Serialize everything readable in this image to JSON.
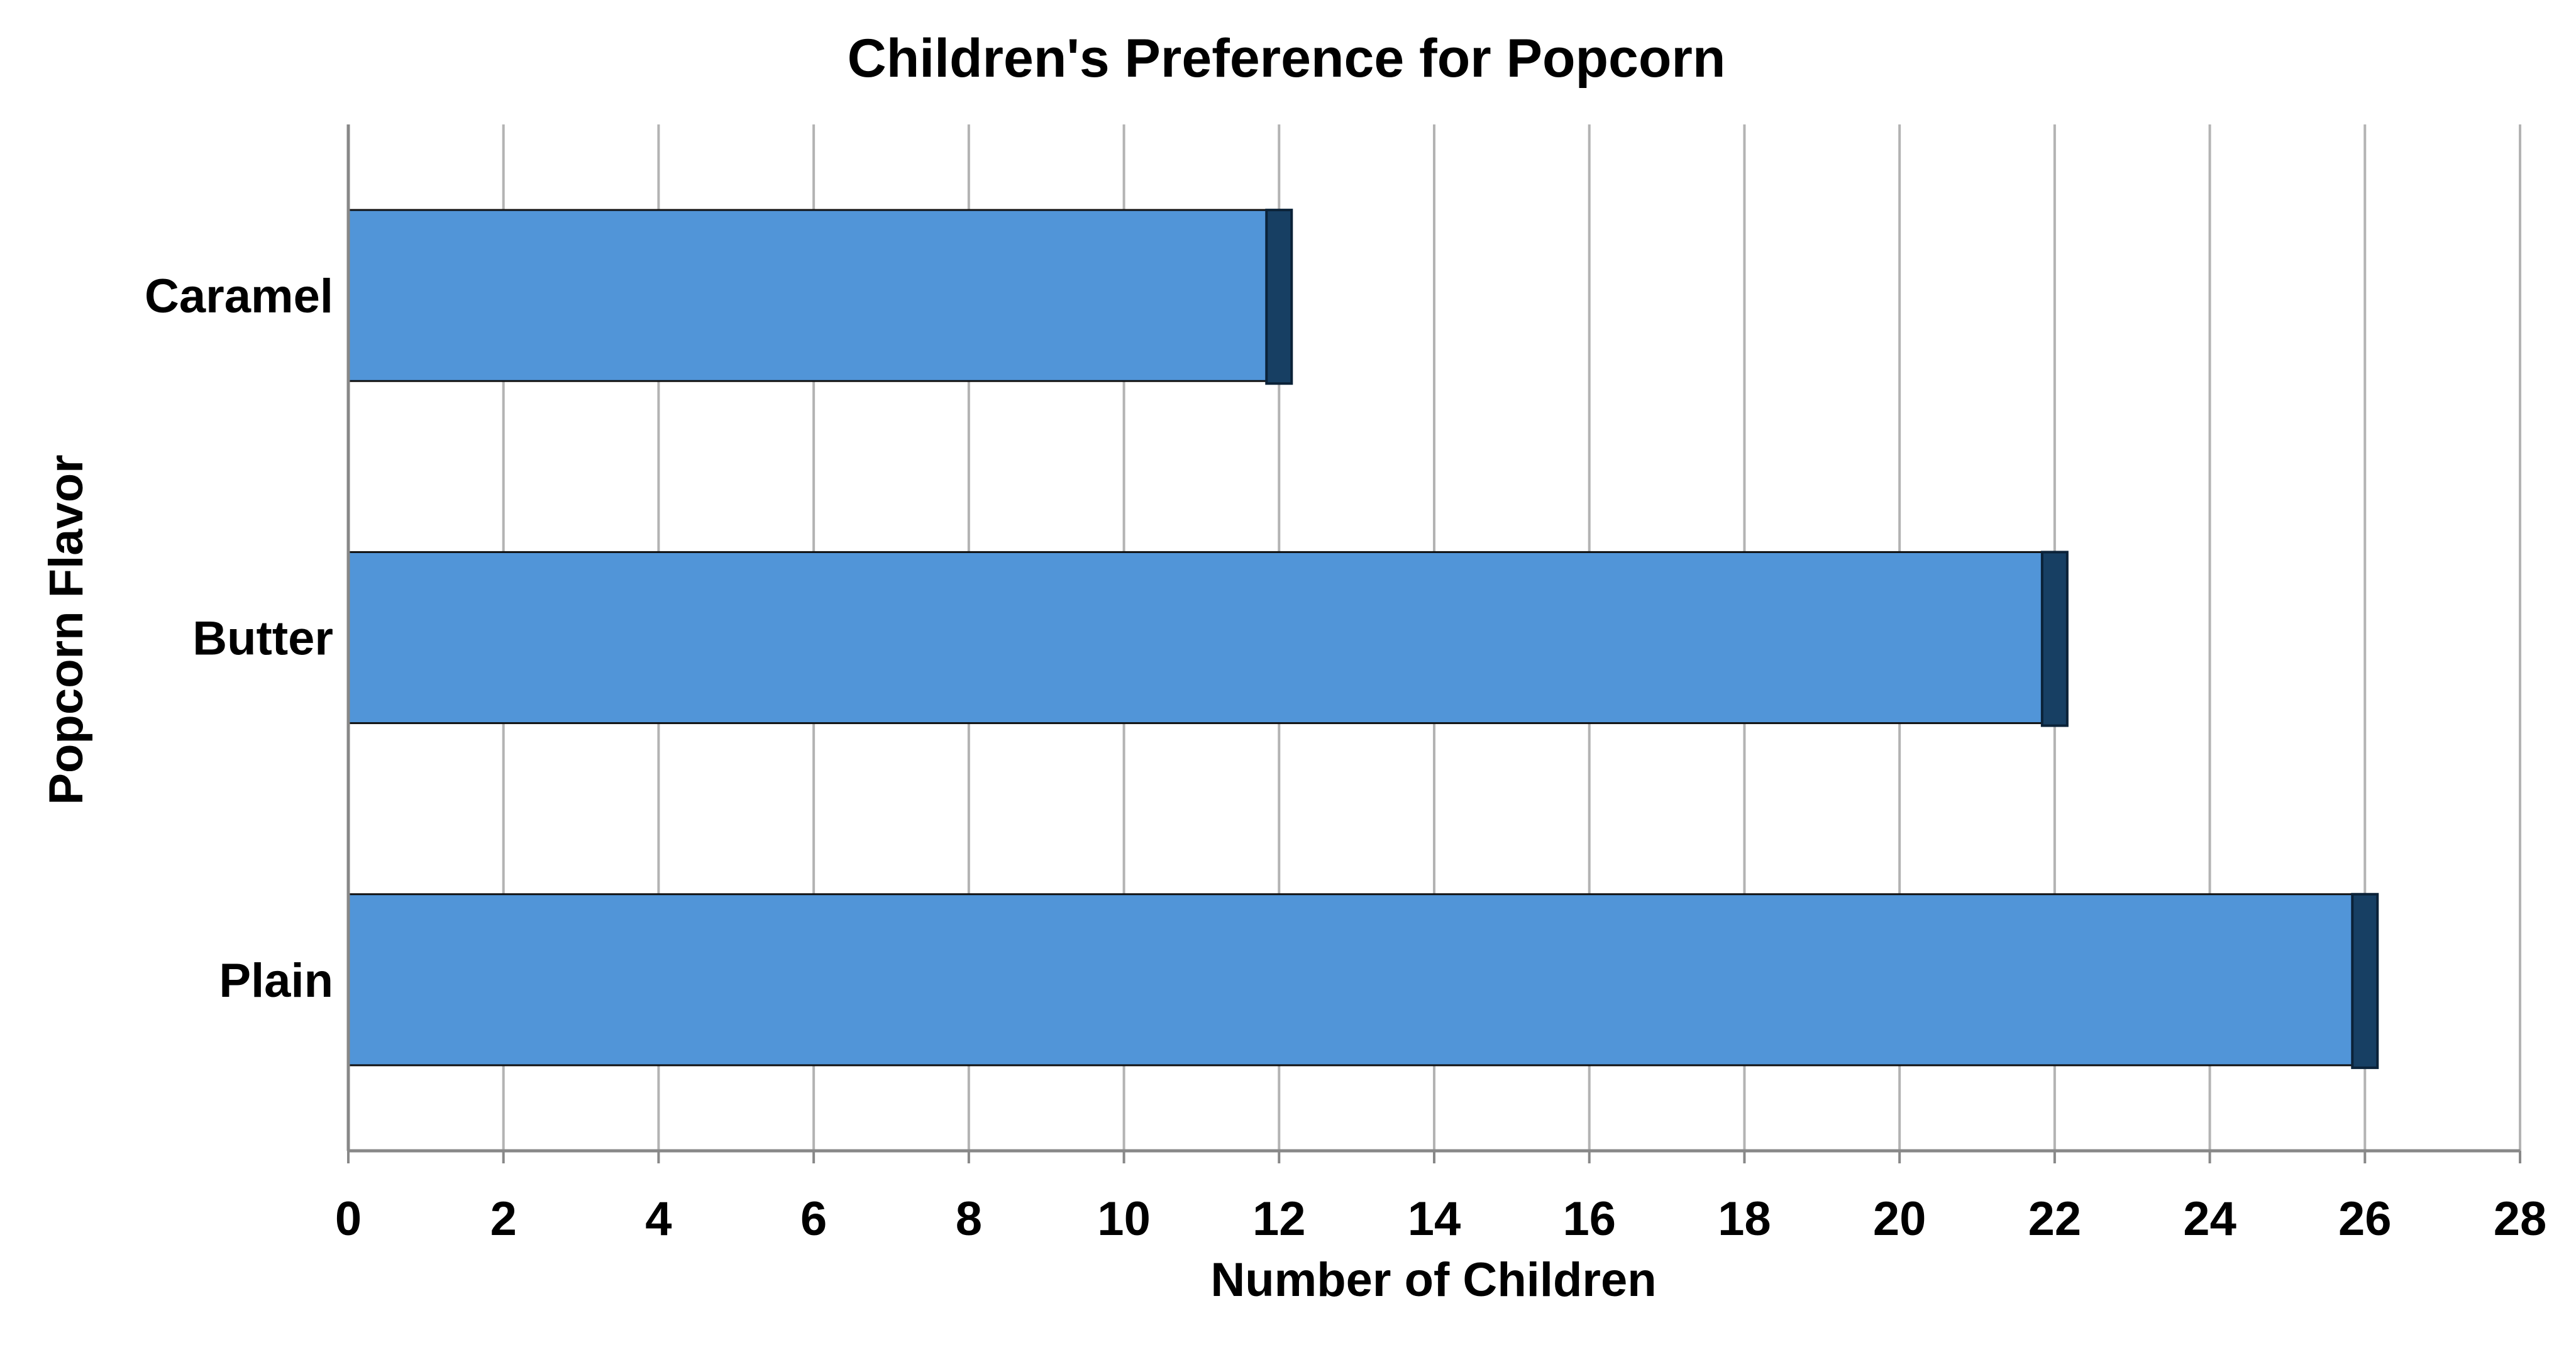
{
  "chart_data": {
    "type": "bar",
    "orientation": "horizontal",
    "title": "Children's Preference for Popcorn",
    "xlabel": "Number of Children",
    "ylabel": "Popcorn Flavor",
    "categories": [
      "Caramel",
      "Butter",
      "Plain"
    ],
    "values": [
      12,
      22,
      26
    ],
    "xlim": [
      0,
      28
    ],
    "xticks": [
      "0",
      "2",
      "4",
      "6",
      "8",
      "10",
      "12",
      "14",
      "16",
      "18",
      "20",
      "22",
      "24",
      "26",
      "28"
    ],
    "grid": "vertical",
    "legend": "none",
    "colors": {
      "bar": "#5195D8",
      "bar_cap": "#173F63",
      "grid": "#B3B3B3",
      "axis": "#888888"
    }
  }
}
